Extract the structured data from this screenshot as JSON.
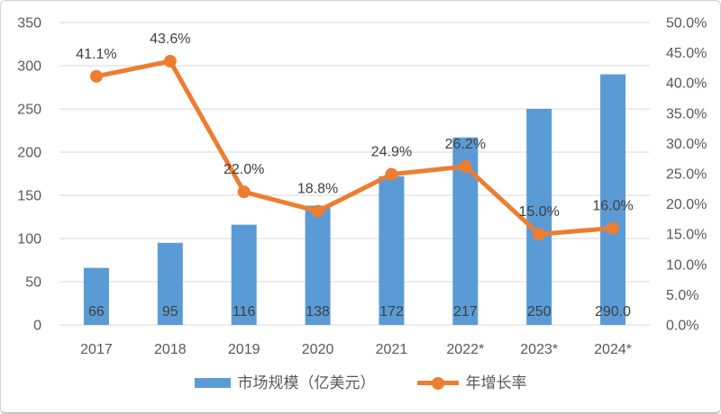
{
  "chart_data": {
    "type": "combo-bar-line",
    "title": "",
    "categories": [
      "2017",
      "2018",
      "2019",
      "2020",
      "2021",
      "2022*",
      "2023*",
      "2024*"
    ],
    "series": [
      {
        "name": "市场规模（亿美元）",
        "type": "bar",
        "axis": "left",
        "color": "#5B9BD5",
        "values": [
          66,
          95,
          116,
          138,
          172,
          217,
          250,
          290
        ],
        "data_labels": [
          "66",
          "95",
          "116",
          "138",
          "172",
          "217",
          "250",
          "290.0"
        ]
      },
      {
        "name": "年增长率",
        "type": "line",
        "axis": "right",
        "color": "#ED7D31",
        "values": [
          41.1,
          43.6,
          22.0,
          18.8,
          24.9,
          26.2,
          15.0,
          16.0
        ],
        "data_labels": [
          "41.1%",
          "43.6%",
          "22.0%",
          "18.8%",
          "24.9%",
          "26.2%",
          "15.0%",
          "16.0%"
        ]
      }
    ],
    "left_axis": {
      "min": 0,
      "max": 350,
      "step": 50,
      "tick_labels": [
        "0",
        "50",
        "100",
        "150",
        "200",
        "250",
        "300",
        "350"
      ]
    },
    "right_axis": {
      "min": 0,
      "max": 50,
      "step": 5,
      "tick_labels": [
        "0.0%",
        "5.0%",
        "10.0%",
        "15.0%",
        "20.0%",
        "25.0%",
        "30.0%",
        "35.0%",
        "40.0%",
        "45.0%",
        "50.0%"
      ]
    },
    "grid": true,
    "legend_position": "bottom"
  },
  "legend": {
    "bar_label": "市场规模（亿美元）",
    "line_label": "年增长率"
  },
  "colors": {
    "bar": "#5B9BD5",
    "line": "#ED7D31",
    "gridline": "#D9D9D9",
    "axis_text": "#595959",
    "data_label_text": "#404040",
    "background": "#FFFFFF",
    "border": "#D2D2D2"
  }
}
